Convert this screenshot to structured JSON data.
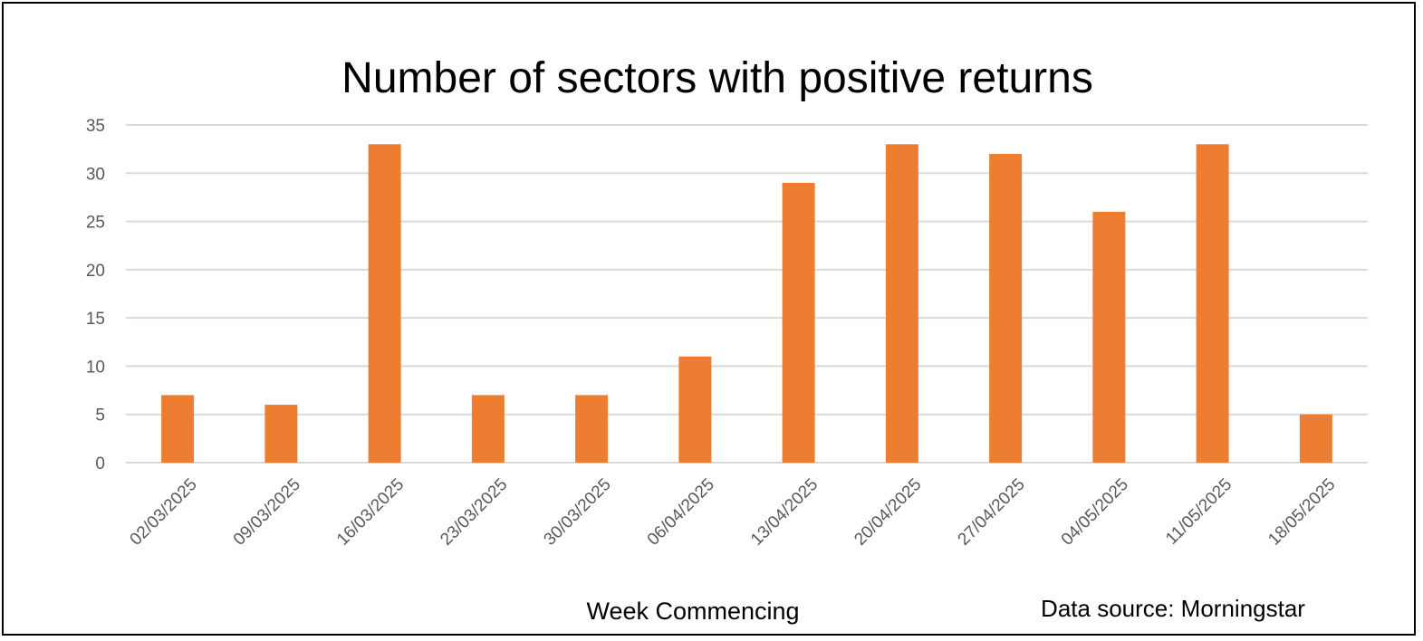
{
  "chart_data": {
    "type": "bar",
    "title": "Number of sectors with positive returns",
    "xlabel": "Week Commencing",
    "ylabel": "",
    "categories": [
      "02/03/2025",
      "09/03/2025",
      "16/03/2025",
      "23/03/2025",
      "30/03/2025",
      "06/04/2025",
      "13/04/2025",
      "20/04/2025",
      "27/04/2025",
      "04/05/2025",
      "11/05/2025",
      "18/05/2025"
    ],
    "values": [
      7,
      6,
      33,
      7,
      7,
      11,
      29,
      33,
      32,
      26,
      33,
      5
    ],
    "ylim": [
      0,
      35
    ],
    "yticks": [
      "0",
      "5",
      "10",
      "15",
      "20",
      "25",
      "30",
      "35"
    ],
    "grid": true,
    "legend": "none",
    "colors": {
      "bar": "#ED7D31",
      "grid": "#D9D9D9",
      "tick_text": "#595959"
    },
    "annotation": "Data source: Morningstar"
  }
}
